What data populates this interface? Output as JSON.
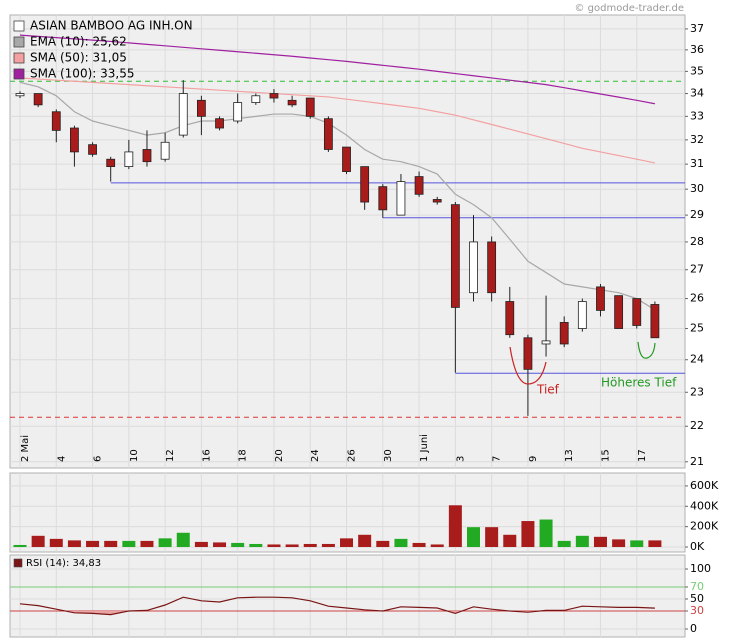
{
  "watermark": "© godmode-trader.de",
  "chart_data": [
    {
      "type": "candlestick",
      "title": "ASIAN BAMBOO AG  INH.ON",
      "categories": [
        "2 Mai",
        null,
        "4",
        null,
        "6",
        null,
        "10",
        null,
        "12",
        null,
        "16",
        null,
        "18",
        null,
        "20",
        null,
        "24",
        null,
        "26",
        null,
        "30",
        null,
        "1 Juni",
        null,
        "3",
        null,
        "7",
        null,
        "9",
        null,
        "13",
        null,
        "15",
        null,
        "17",
        null
      ],
      "open": [
        33.9,
        34.0,
        33.2,
        32.5,
        31.8,
        31.2,
        30.9,
        31.6,
        31.2,
        32.2,
        33.7,
        32.9,
        32.8,
        33.6,
        34.0,
        33.7,
        33.8,
        32.9,
        31.7,
        30.9,
        30.1,
        29.0,
        30.5,
        29.6,
        29.4,
        26.2,
        28.0,
        25.9,
        24.7,
        24.5,
        25.2,
        25.0,
        26.4,
        26.1,
        26.0,
        25.8
      ],
      "high": [
        34.1,
        34.0,
        33.3,
        32.6,
        31.9,
        31.3,
        32.0,
        32.4,
        32.3,
        34.6,
        33.9,
        33.0,
        34.0,
        34.0,
        34.2,
        33.9,
        33.8,
        33.0,
        31.7,
        30.9,
        30.2,
        30.6,
        30.7,
        29.7,
        29.5,
        29.0,
        28.2,
        26.4,
        24.8,
        26.1,
        25.4,
        26.0,
        26.5,
        26.1,
        26.0,
        25.9
      ],
      "low": [
        33.8,
        33.4,
        31.9,
        30.9,
        31.3,
        30.3,
        30.8,
        30.9,
        31.1,
        32.1,
        32.2,
        32.4,
        32.7,
        33.5,
        33.6,
        33.4,
        32.9,
        31.5,
        30.6,
        29.2,
        28.9,
        29.0,
        29.7,
        29.4,
        23.6,
        25.9,
        25.9,
        24.7,
        22.3,
        24.1,
        24.4,
        24.9,
        25.4,
        25.0,
        25.0,
        24.7
      ],
      "close": [
        34.0,
        33.5,
        32.4,
        31.5,
        31.4,
        30.9,
        31.5,
        31.1,
        31.9,
        34.0,
        33.0,
        32.5,
        33.6,
        33.9,
        33.8,
        33.5,
        33.0,
        31.6,
        30.7,
        29.5,
        29.2,
        30.3,
        29.8,
        29.5,
        25.7,
        28.0,
        26.2,
        24.8,
        23.7,
        24.6,
        24.5,
        25.9,
        25.6,
        25.0,
        25.1,
        24.7
      ],
      "up_color": "#ffffff",
      "down_color": "#a81c1c",
      "series": [
        {
          "name": "EMA (10): 25,62",
          "color": "#a8a8a8",
          "values": [
            34.5,
            34.3,
            33.9,
            33.2,
            32.8,
            32.6,
            32.4,
            32.2,
            32.3,
            32.6,
            32.8,
            32.8,
            32.9,
            33.0,
            33.1,
            33.1,
            33.0,
            32.7,
            32.2,
            31.6,
            31.2,
            31.1,
            30.9,
            30.6,
            29.8,
            29.4,
            28.9,
            28.1,
            27.3,
            26.9,
            26.5,
            26.4,
            26.3,
            26.2,
            26.0,
            25.62
          ]
        },
        {
          "name": "SMA (50): 31,05",
          "color": "#f4a0a0",
          "values": [
            34.7,
            34.65,
            34.6,
            34.55,
            34.5,
            34.45,
            34.4,
            34.35,
            34.3,
            34.25,
            34.2,
            34.15,
            34.1,
            34.05,
            34.0,
            33.95,
            33.9,
            33.85,
            33.75,
            33.65,
            33.55,
            33.45,
            33.35,
            33.2,
            33.05,
            32.85,
            32.65,
            32.45,
            32.25,
            32.05,
            31.85,
            31.65,
            31.5,
            31.35,
            31.2,
            31.05
          ]
        },
        {
          "name": "SMA (100): 33,55",
          "color": "#a020a0",
          "values": [
            36.7,
            36.64,
            36.58,
            36.52,
            36.46,
            36.4,
            36.33,
            36.26,
            36.19,
            36.12,
            36.05,
            35.98,
            35.91,
            35.84,
            35.77,
            35.7,
            35.62,
            35.54,
            35.46,
            35.37,
            35.28,
            35.19,
            35.1,
            35.0,
            34.9,
            34.8,
            34.7,
            34.6,
            34.5,
            34.4,
            34.26,
            34.12,
            33.98,
            33.84,
            33.7,
            33.55
          ]
        }
      ],
      "log_scale": true,
      "ylim": [
        20.83,
        37.68
      ],
      "yticks": [
        21,
        22,
        23,
        24,
        25,
        26,
        27,
        28,
        29,
        30,
        31,
        32,
        33,
        34,
        35,
        36,
        37
      ],
      "grid": true,
      "reference_lines": [
        {
          "value": 34.55,
          "color": "#33bb33",
          "style": "dashed"
        },
        {
          "value": 22.26,
          "color": "#dd3333",
          "style": "dashed"
        },
        {
          "value": 30.25,
          "color": "#5555dd",
          "start": 5
        },
        {
          "value": 28.9,
          "color": "#5555dd",
          "start": 20
        },
        {
          "value": 23.58,
          "color": "#5555dd",
          "start": 24
        }
      ],
      "annotations": [
        {
          "text": "Tief",
          "color": "#cc2222"
        },
        {
          "text": "Höheres Tief",
          "color": "#229922"
        }
      ]
    },
    {
      "type": "bar",
      "values": [
        20000,
        110000,
        80000,
        65000,
        60000,
        60000,
        60000,
        60000,
        85000,
        140000,
        50000,
        45000,
        40000,
        30000,
        25000,
        25000,
        30000,
        30000,
        85000,
        120000,
        60000,
        80000,
        40000,
        25000,
        410000,
        195000,
        195000,
        120000,
        255000,
        270000,
        60000,
        110000,
        100000,
        75000,
        65000,
        65000
      ],
      "colors": [
        "#22aa22",
        "#a81c1c",
        "#a81c1c",
        "#a81c1c",
        "#a81c1c",
        "#a81c1c",
        "#22aa22",
        "#a81c1c",
        "#22aa22",
        "#22aa22",
        "#a81c1c",
        "#a81c1c",
        "#22aa22",
        "#22aa22",
        "#a81c1c",
        "#a81c1c",
        "#a81c1c",
        "#a81c1c",
        "#a81c1c",
        "#a81c1c",
        "#a81c1c",
        "#22aa22",
        "#a81c1c",
        "#a81c1c",
        "#a81c1c",
        "#22aa22",
        "#a81c1c",
        "#a81c1c",
        "#a81c1c",
        "#22aa22",
        "#22aa22",
        "#22aa22",
        "#a81c1c",
        "#a81c1c",
        "#22aa22",
        "#a81c1c"
      ],
      "ylim": [
        -49000,
        727000
      ],
      "yticks": [
        {
          "value": 0,
          "label": "0K"
        },
        {
          "value": 200000,
          "label": "200K"
        },
        {
          "value": 400000,
          "label": "400K"
        },
        {
          "value": 600000,
          "label": "600K"
        }
      ],
      "grid": true
    },
    {
      "type": "line",
      "series": [
        {
          "name": "RSI (14): 34,83",
          "color": "#7a1515",
          "values": [
            42,
            39,
            33,
            27,
            26,
            24,
            30,
            31,
            40,
            53,
            47,
            45,
            52,
            53,
            53,
            52,
            47,
            38,
            35,
            32,
            30,
            37,
            36,
            35,
            26,
            37,
            33,
            30,
            28,
            31,
            31,
            38,
            37,
            36,
            36,
            34.83
          ]
        }
      ],
      "ylim": [
        -13.3,
        123.3
      ],
      "yticks": [
        0,
        30,
        50,
        70,
        100
      ],
      "grid": true,
      "reference_lines": [
        {
          "value": 70,
          "color": "#77cc77"
        },
        {
          "value": 30,
          "color": "#cc4444"
        }
      ],
      "fill_below": 30,
      "fill_color": "#e9a3a3"
    }
  ]
}
